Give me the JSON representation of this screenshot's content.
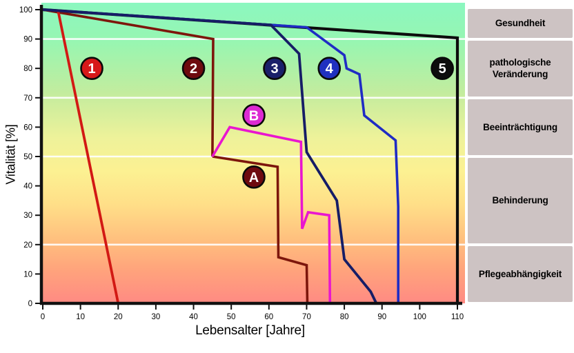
{
  "chart_data": {
    "type": "line",
    "title": "",
    "xlabel": "Lebensalter [Jahre]",
    "ylabel": "Vitalität [%]",
    "xlim": [
      0,
      110
    ],
    "ylim": [
      0,
      100
    ],
    "x_ticks": [
      0,
      10,
      20,
      30,
      40,
      50,
      60,
      70,
      80,
      90,
      100,
      110
    ],
    "y_ticks": [
      0,
      10,
      20,
      30,
      40,
      50,
      60,
      70,
      80,
      90,
      100
    ],
    "gridlines_y": [
      20,
      50,
      70,
      90
    ],
    "grid_color": "#ffffff",
    "axis_color": "#111111",
    "background_gradient": [
      [
        "0%",
        "#8bf7c0"
      ],
      [
        "13%",
        "#97f6b1"
      ],
      [
        "30%",
        "#c3ec9e"
      ],
      [
        "45%",
        "#eef29a"
      ],
      [
        "56%",
        "#fcf192"
      ],
      [
        "67%",
        "#ffdf88"
      ],
      [
        "79%",
        "#ffbf7e"
      ],
      [
        "89%",
        "#ffa37c"
      ],
      [
        "100%",
        "#ff8a83"
      ]
    ],
    "series": [
      {
        "name": "5",
        "color": "#0d0d0d",
        "width": 4.2,
        "points": [
          [
            0,
            100
          ],
          [
            110,
            90.4
          ],
          [
            110,
            0
          ]
        ]
      },
      {
        "name": "4",
        "color": "#1f2cc4",
        "width": 3.6,
        "points": [
          [
            0,
            100
          ],
          [
            70,
            94
          ],
          [
            80,
            84.5
          ],
          [
            80.6,
            80
          ],
          [
            84,
            78
          ],
          [
            85.3,
            64
          ],
          [
            93.6,
            55.5
          ],
          [
            94.3,
            33
          ],
          [
            94.3,
            0
          ]
        ]
      },
      {
        "name": "2",
        "color": "#7d160c",
        "width": 3.6,
        "points": [
          [
            0,
            100
          ],
          [
            45.2,
            90
          ],
          [
            45,
            50
          ]
        ]
      },
      {
        "name": "A",
        "color": "#7d160c",
        "width": 3.6,
        "points": [
          [
            45,
            50
          ],
          [
            62.3,
            46.5
          ],
          [
            62.5,
            15.7
          ],
          [
            70,
            13
          ],
          [
            70.2,
            0
          ]
        ]
      },
      {
        "name": "1",
        "color": "#d21914",
        "width": 3.8,
        "points": [
          [
            4,
            100
          ],
          [
            20,
            0
          ]
        ]
      },
      {
        "name": "3",
        "color": "#161d66",
        "width": 3.8,
        "points": [
          [
            0,
            100
          ],
          [
            60.5,
            94.8
          ],
          [
            68,
            85
          ],
          [
            70,
            51.5
          ],
          [
            78,
            35
          ],
          [
            80,
            15
          ],
          [
            87,
            4
          ],
          [
            88.5,
            0
          ]
        ]
      },
      {
        "name": "B",
        "color": "#e916cf",
        "width": 3.6,
        "points": [
          [
            45,
            50
          ],
          [
            49.6,
            60
          ],
          [
            68.5,
            55
          ],
          [
            68.8,
            25.4
          ],
          [
            70.4,
            31
          ],
          [
            76,
            30
          ],
          [
            76.2,
            0
          ]
        ]
      }
    ],
    "badges": [
      {
        "label": "1",
        "x": 13,
        "y": 80,
        "fill": "#d71919"
      },
      {
        "label": "2",
        "x": 40,
        "y": 80,
        "fill": "#6e0a0f"
      },
      {
        "label": "3",
        "x": 61.5,
        "y": 80,
        "fill": "#1a1f6a"
      },
      {
        "label": "4",
        "x": 76,
        "y": 80,
        "fill": "#2030c0"
      },
      {
        "label": "5",
        "x": 106,
        "y": 80,
        "fill": "#0d0d0d"
      },
      {
        "label": "A",
        "x": 56,
        "y": 43,
        "fill": "#6e0a0f"
      },
      {
        "label": "B",
        "x": 56,
        "y": 64,
        "fill": "#dd2ad2"
      }
    ],
    "legend_position": "right-panel"
  },
  "stages": [
    {
      "label": "Gesundheit",
      "from": 90,
      "to": 100.7
    },
    {
      "label": "pathologische Veränderung",
      "from": 70,
      "to": 90
    },
    {
      "label": "Beeinträchtigung",
      "from": 50,
      "to": 70
    },
    {
      "label": "Behinderung",
      "from": 20,
      "to": 50
    },
    {
      "label": "Pflegeabhängigkeit",
      "from": 0,
      "to": 20
    }
  ],
  "panel_bg_color": "#cdc3c3"
}
